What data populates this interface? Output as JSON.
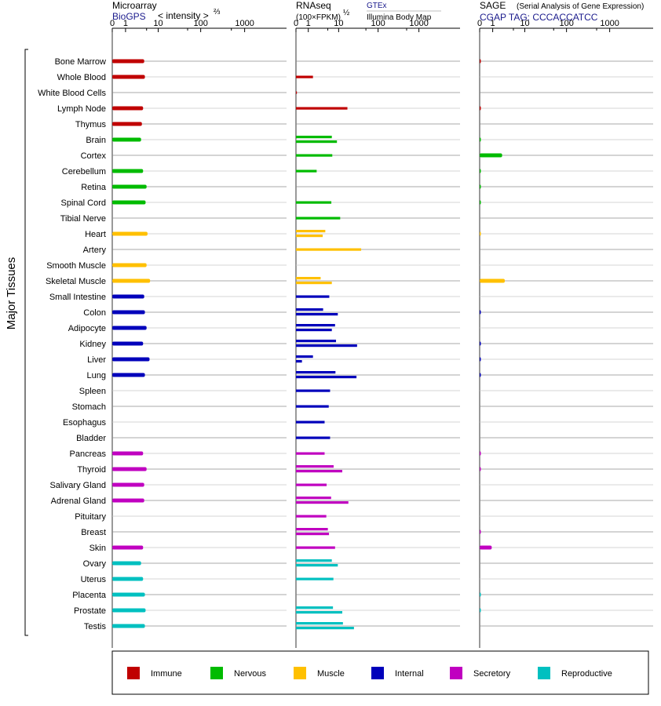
{
  "header": {
    "microarray": {
      "title": "Microarray",
      "source": "BioGPS",
      "unit": "< intensity >",
      "unit_sup": "⅔"
    },
    "rnaseq": {
      "title": "RNAseq",
      "unit": "(100×FPKM)",
      "unit_sup": "½",
      "source1": "GTEx",
      "source2": "Illumina Body Map"
    },
    "sage": {
      "title": "SAGE",
      "subtitle": "(Serial Analysis of Gene Expression)",
      "tag": "CGAP TAG: CCCACCATCC"
    }
  },
  "side_label": "Major Tissues",
  "legend": [
    {
      "key": "immune",
      "label": "Immune",
      "color": "#c00000"
    },
    {
      "key": "nervous",
      "label": "Nervous",
      "color": "#00bb00"
    },
    {
      "key": "muscle",
      "label": "Muscle",
      "color": "#ffc000"
    },
    {
      "key": "internal",
      "label": "Internal",
      "color": "#0000bb"
    },
    {
      "key": "secretory",
      "label": "Secretory",
      "color": "#c000c0"
    },
    {
      "key": "reproductive",
      "label": "Reproductive",
      "color": "#00c0c0"
    }
  ],
  "chart_data": {
    "type": "bar",
    "orientation": "horizontal",
    "x_scale": "log-like, 0 to 1000",
    "ticks": [
      0,
      1,
      10,
      100,
      1000
    ],
    "tick_labels": [
      "0",
      "1",
      "10",
      "100",
      "1000"
    ],
    "panels": [
      "Microarray",
      "RNAseq",
      "SAGE"
    ],
    "tissues": [
      {
        "name": "Bone Marrow",
        "group": "immune",
        "microarray": [
          4.3
        ],
        "rnaseq": [],
        "sage": [
          0.02
        ]
      },
      {
        "name": "Whole Blood",
        "group": "immune",
        "microarray": [
          4.5
        ],
        "rnaseq": [
          1.6
        ],
        "sage": []
      },
      {
        "name": "White Blood Cells",
        "group": "immune",
        "microarray": [],
        "rnaseq": [
          0.05
        ],
        "sage": []
      },
      {
        "name": "Lymph Node",
        "group": "immune",
        "microarray": [
          4.0
        ],
        "rnaseq": [
          17
        ],
        "sage": [
          0.02
        ]
      },
      {
        "name": "Thymus",
        "group": "immune",
        "microarray": [
          3.7
        ],
        "rnaseq": [],
        "sage": []
      },
      {
        "name": "Brain",
        "group": "nervous",
        "microarray": [
          3.5
        ],
        "rnaseq": [
          6.5,
          9
        ],
        "sage": [
          0.01
        ]
      },
      {
        "name": "Cortex",
        "group": "nervous",
        "microarray": [],
        "rnaseq": [
          6.7
        ],
        "sage": [
          2.3
        ]
      },
      {
        "name": "Cerebellum",
        "group": "nervous",
        "microarray": [
          4.0
        ],
        "rnaseq": [
          2.2
        ],
        "sage": [
          0.01
        ]
      },
      {
        "name": "Retina",
        "group": "nervous",
        "microarray": [
          5.0
        ],
        "rnaseq": [],
        "sage": [
          0.01
        ]
      },
      {
        "name": "Spinal Cord",
        "group": "nervous",
        "microarray": [
          4.7
        ],
        "rnaseq": [
          6.3
        ],
        "sage": [
          0.01
        ]
      },
      {
        "name": "Tibial Nerve",
        "group": "nervous",
        "microarray": [],
        "rnaseq": [
          11
        ],
        "sage": []
      },
      {
        "name": "Heart",
        "group": "muscle",
        "microarray": [
          5.3
        ],
        "rnaseq": [
          4.2,
          3.5
        ],
        "sage": [
          0.01
        ]
      },
      {
        "name": "Artery",
        "group": "muscle",
        "microarray": [],
        "rnaseq": [
          38
        ],
        "sage": []
      },
      {
        "name": "Smooth Muscle",
        "group": "muscle",
        "microarray": [
          5.0
        ],
        "rnaseq": [],
        "sage": []
      },
      {
        "name": "Skeletal Muscle",
        "group": "muscle",
        "microarray": [
          6.2
        ],
        "rnaseq": [
          3.0,
          6.5
        ],
        "sage": [
          2.8
        ]
      },
      {
        "name": "Small Intestine",
        "group": "internal",
        "microarray": [
          4.3
        ],
        "rnaseq": [
          5.5
        ],
        "sage": []
      },
      {
        "name": "Colon",
        "group": "internal",
        "microarray": [
          4.5
        ],
        "rnaseq": [
          3.6,
          9.5
        ],
        "sage": [
          0.02
        ]
      },
      {
        "name": "Adipocyte",
        "group": "internal",
        "microarray": [
          5.0
        ],
        "rnaseq": [
          8,
          6.5
        ],
        "sage": []
      },
      {
        "name": "Kidney",
        "group": "internal",
        "microarray": [
          4.0
        ],
        "rnaseq": [
          8.5,
          30
        ],
        "sage": [
          0.02
        ]
      },
      {
        "name": "Liver",
        "group": "internal",
        "microarray": [
          6.0
        ],
        "rnaseq": [
          1.6,
          0.4
        ],
        "sage": [
          0.02
        ]
      },
      {
        "name": "Lung",
        "group": "internal",
        "microarray": [
          4.5
        ],
        "rnaseq": [
          8.2,
          29
        ],
        "sage": [
          0.02
        ]
      },
      {
        "name": "Spleen",
        "group": "internal",
        "microarray": [],
        "rnaseq": [
          5.8
        ],
        "sage": []
      },
      {
        "name": "Stomach",
        "group": "internal",
        "microarray": [],
        "rnaseq": [
          5.3
        ],
        "sage": []
      },
      {
        "name": "Esophagus",
        "group": "internal",
        "microarray": [],
        "rnaseq": [
          4.0
        ],
        "sage": []
      },
      {
        "name": "Bladder",
        "group": "internal",
        "microarray": [],
        "rnaseq": [
          5.8
        ],
        "sage": []
      },
      {
        "name": "Pancreas",
        "group": "secretory",
        "microarray": [
          4.0
        ],
        "rnaseq": [
          4.0
        ],
        "sage": [
          0.01
        ]
      },
      {
        "name": "Thyroid",
        "group": "secretory",
        "microarray": [
          5.0
        ],
        "rnaseq": [
          7.3,
          12.5
        ],
        "sage": [
          0.01
        ]
      },
      {
        "name": "Salivary Gland",
        "group": "secretory",
        "microarray": [
          4.3
        ],
        "rnaseq": [
          4.6
        ],
        "sage": []
      },
      {
        "name": "Adrenal Gland",
        "group": "secretory",
        "microarray": [
          4.3
        ],
        "rnaseq": [
          6.2,
          18
        ],
        "sage": []
      },
      {
        "name": "Pituitary",
        "group": "secretory",
        "microarray": [],
        "rnaseq": [
          4.5
        ],
        "sage": []
      },
      {
        "name": "Breast",
        "group": "secretory",
        "microarray": [],
        "rnaseq": [
          5.0,
          5.4
        ],
        "sage": [
          0.01
        ]
      },
      {
        "name": "Skin",
        "group": "secretory",
        "microarray": [
          4.0
        ],
        "rnaseq": [
          8.0
        ],
        "sage": [
          0.9
        ]
      },
      {
        "name": "Ovary",
        "group": "reproductive",
        "microarray": [
          3.5
        ],
        "rnaseq": [
          6.5,
          9.5
        ],
        "sage": []
      },
      {
        "name": "Uterus",
        "group": "reproductive",
        "microarray": [
          4.0
        ],
        "rnaseq": [
          7.2
        ],
        "sage": []
      },
      {
        "name": "Placenta",
        "group": "reproductive",
        "microarray": [
          4.5
        ],
        "rnaseq": [],
        "sage": [
          0.01
        ]
      },
      {
        "name": "Prostate",
        "group": "reproductive",
        "microarray": [
          4.7
        ],
        "rnaseq": [
          7.0,
          12.5
        ],
        "sage": [
          0.01
        ]
      },
      {
        "name": "Testis",
        "group": "reproductive",
        "microarray": [
          4.5
        ],
        "rnaseq": [
          13,
          25
        ],
        "sage": []
      }
    ]
  }
}
